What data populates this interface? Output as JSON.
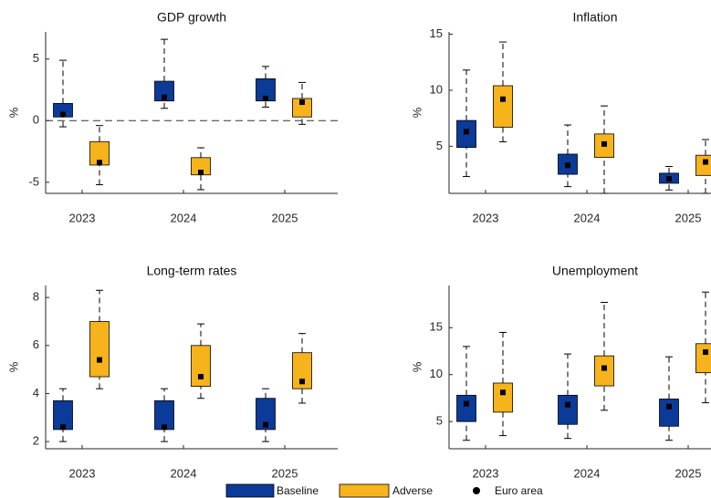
{
  "legend": {
    "series": [
      {
        "name": "Baseline",
        "color": "#0b3a99"
      },
      {
        "name": "Adverse",
        "color": "#f6b31b"
      }
    ],
    "marker": "Euro area"
  },
  "chart_data": [
    {
      "type": "box",
      "title": "GDP growth",
      "ylabel": "%",
      "categories": [
        "2023",
        "2024",
        "2025"
      ],
      "ylim": [
        -5.9,
        7.2
      ],
      "yticks": [
        -5,
        0,
        5
      ],
      "hline": 0,
      "series": [
        {
          "low": [
            -0.5,
            1.0,
            1.1
          ],
          "q1": [
            0.3,
            1.6,
            1.6
          ],
          "q3": [
            1.4,
            3.2,
            3.4
          ],
          "high": [
            4.9,
            6.6,
            4.4
          ],
          "euro_area": [
            0.5,
            1.9,
            1.8
          ]
        },
        {
          "low": [
            -5.2,
            -5.6,
            -0.3
          ],
          "q1": [
            -3.6,
            -4.4,
            0.3
          ],
          "q3": [
            -1.7,
            -3.0,
            1.8
          ],
          "high": [
            -0.4,
            -2.2,
            3.1
          ],
          "euro_area": [
            -3.4,
            -4.2,
            1.5
          ]
        }
      ]
    },
    {
      "type": "box",
      "title": "Inflation",
      "ylabel": "%",
      "categories": [
        "2023",
        "2024",
        "2025"
      ],
      "ylim": [
        0.8,
        15.2
      ],
      "yticks": [
        5,
        10,
        15
      ],
      "series": [
        {
          "low": [
            2.3,
            1.4,
            1.1
          ],
          "q1": [
            4.9,
            2.5,
            1.7
          ],
          "q3": [
            7.3,
            4.3,
            2.6
          ],
          "high": [
            11.8,
            6.9,
            3.2
          ],
          "euro_area": [
            6.3,
            3.3,
            2.1
          ]
        },
        {
          "low": [
            5.4,
            0.8,
            0.8
          ],
          "q1": [
            6.7,
            4.0,
            2.4
          ],
          "q3": [
            10.4,
            6.1,
            4.2
          ],
          "high": [
            14.3,
            8.6,
            5.6
          ],
          "euro_area": [
            9.2,
            5.2,
            3.6
          ]
        }
      ]
    },
    {
      "type": "box",
      "title": "Long-term rates",
      "ylabel": "%",
      "categories": [
        "2023",
        "2024",
        "2025"
      ],
      "ylim": [
        1.7,
        8.5
      ],
      "yticks": [
        2,
        4,
        6,
        8
      ],
      "series": [
        {
          "low": [
            2.0,
            2.0,
            2.0
          ],
          "q1": [
            2.5,
            2.5,
            2.5
          ],
          "q3": [
            3.7,
            3.7,
            3.8
          ],
          "high": [
            4.2,
            4.2,
            4.2
          ],
          "euro_area": [
            2.6,
            2.6,
            2.7
          ]
        },
        {
          "low": [
            4.2,
            3.8,
            3.6
          ],
          "q1": [
            4.7,
            4.3,
            4.2
          ],
          "q3": [
            7.0,
            6.0,
            5.7
          ],
          "high": [
            8.3,
            6.9,
            6.5
          ],
          "euro_area": [
            5.4,
            4.7,
            4.5
          ]
        }
      ]
    },
    {
      "type": "box",
      "title": "Unemployment",
      "ylabel": "%",
      "categories": [
        "2023",
        "2024",
        "2025"
      ],
      "ylim": [
        2.1,
        19.5
      ],
      "yticks": [
        5,
        10,
        15
      ],
      "series": [
        {
          "low": [
            3.0,
            3.2,
            3.0
          ],
          "q1": [
            5.0,
            4.7,
            4.5
          ],
          "q3": [
            7.8,
            7.8,
            7.4
          ],
          "high": [
            13.0,
            12.2,
            11.9
          ],
          "euro_area": [
            6.9,
            6.8,
            6.6
          ]
        },
        {
          "low": [
            3.5,
            6.2,
            7.0
          ],
          "q1": [
            6.0,
            8.8,
            10.2
          ],
          "q3": [
            9.1,
            12.0,
            13.3
          ],
          "high": [
            14.5,
            17.7,
            18.8
          ],
          "euro_area": [
            8.1,
            10.7,
            12.4
          ]
        }
      ]
    }
  ]
}
